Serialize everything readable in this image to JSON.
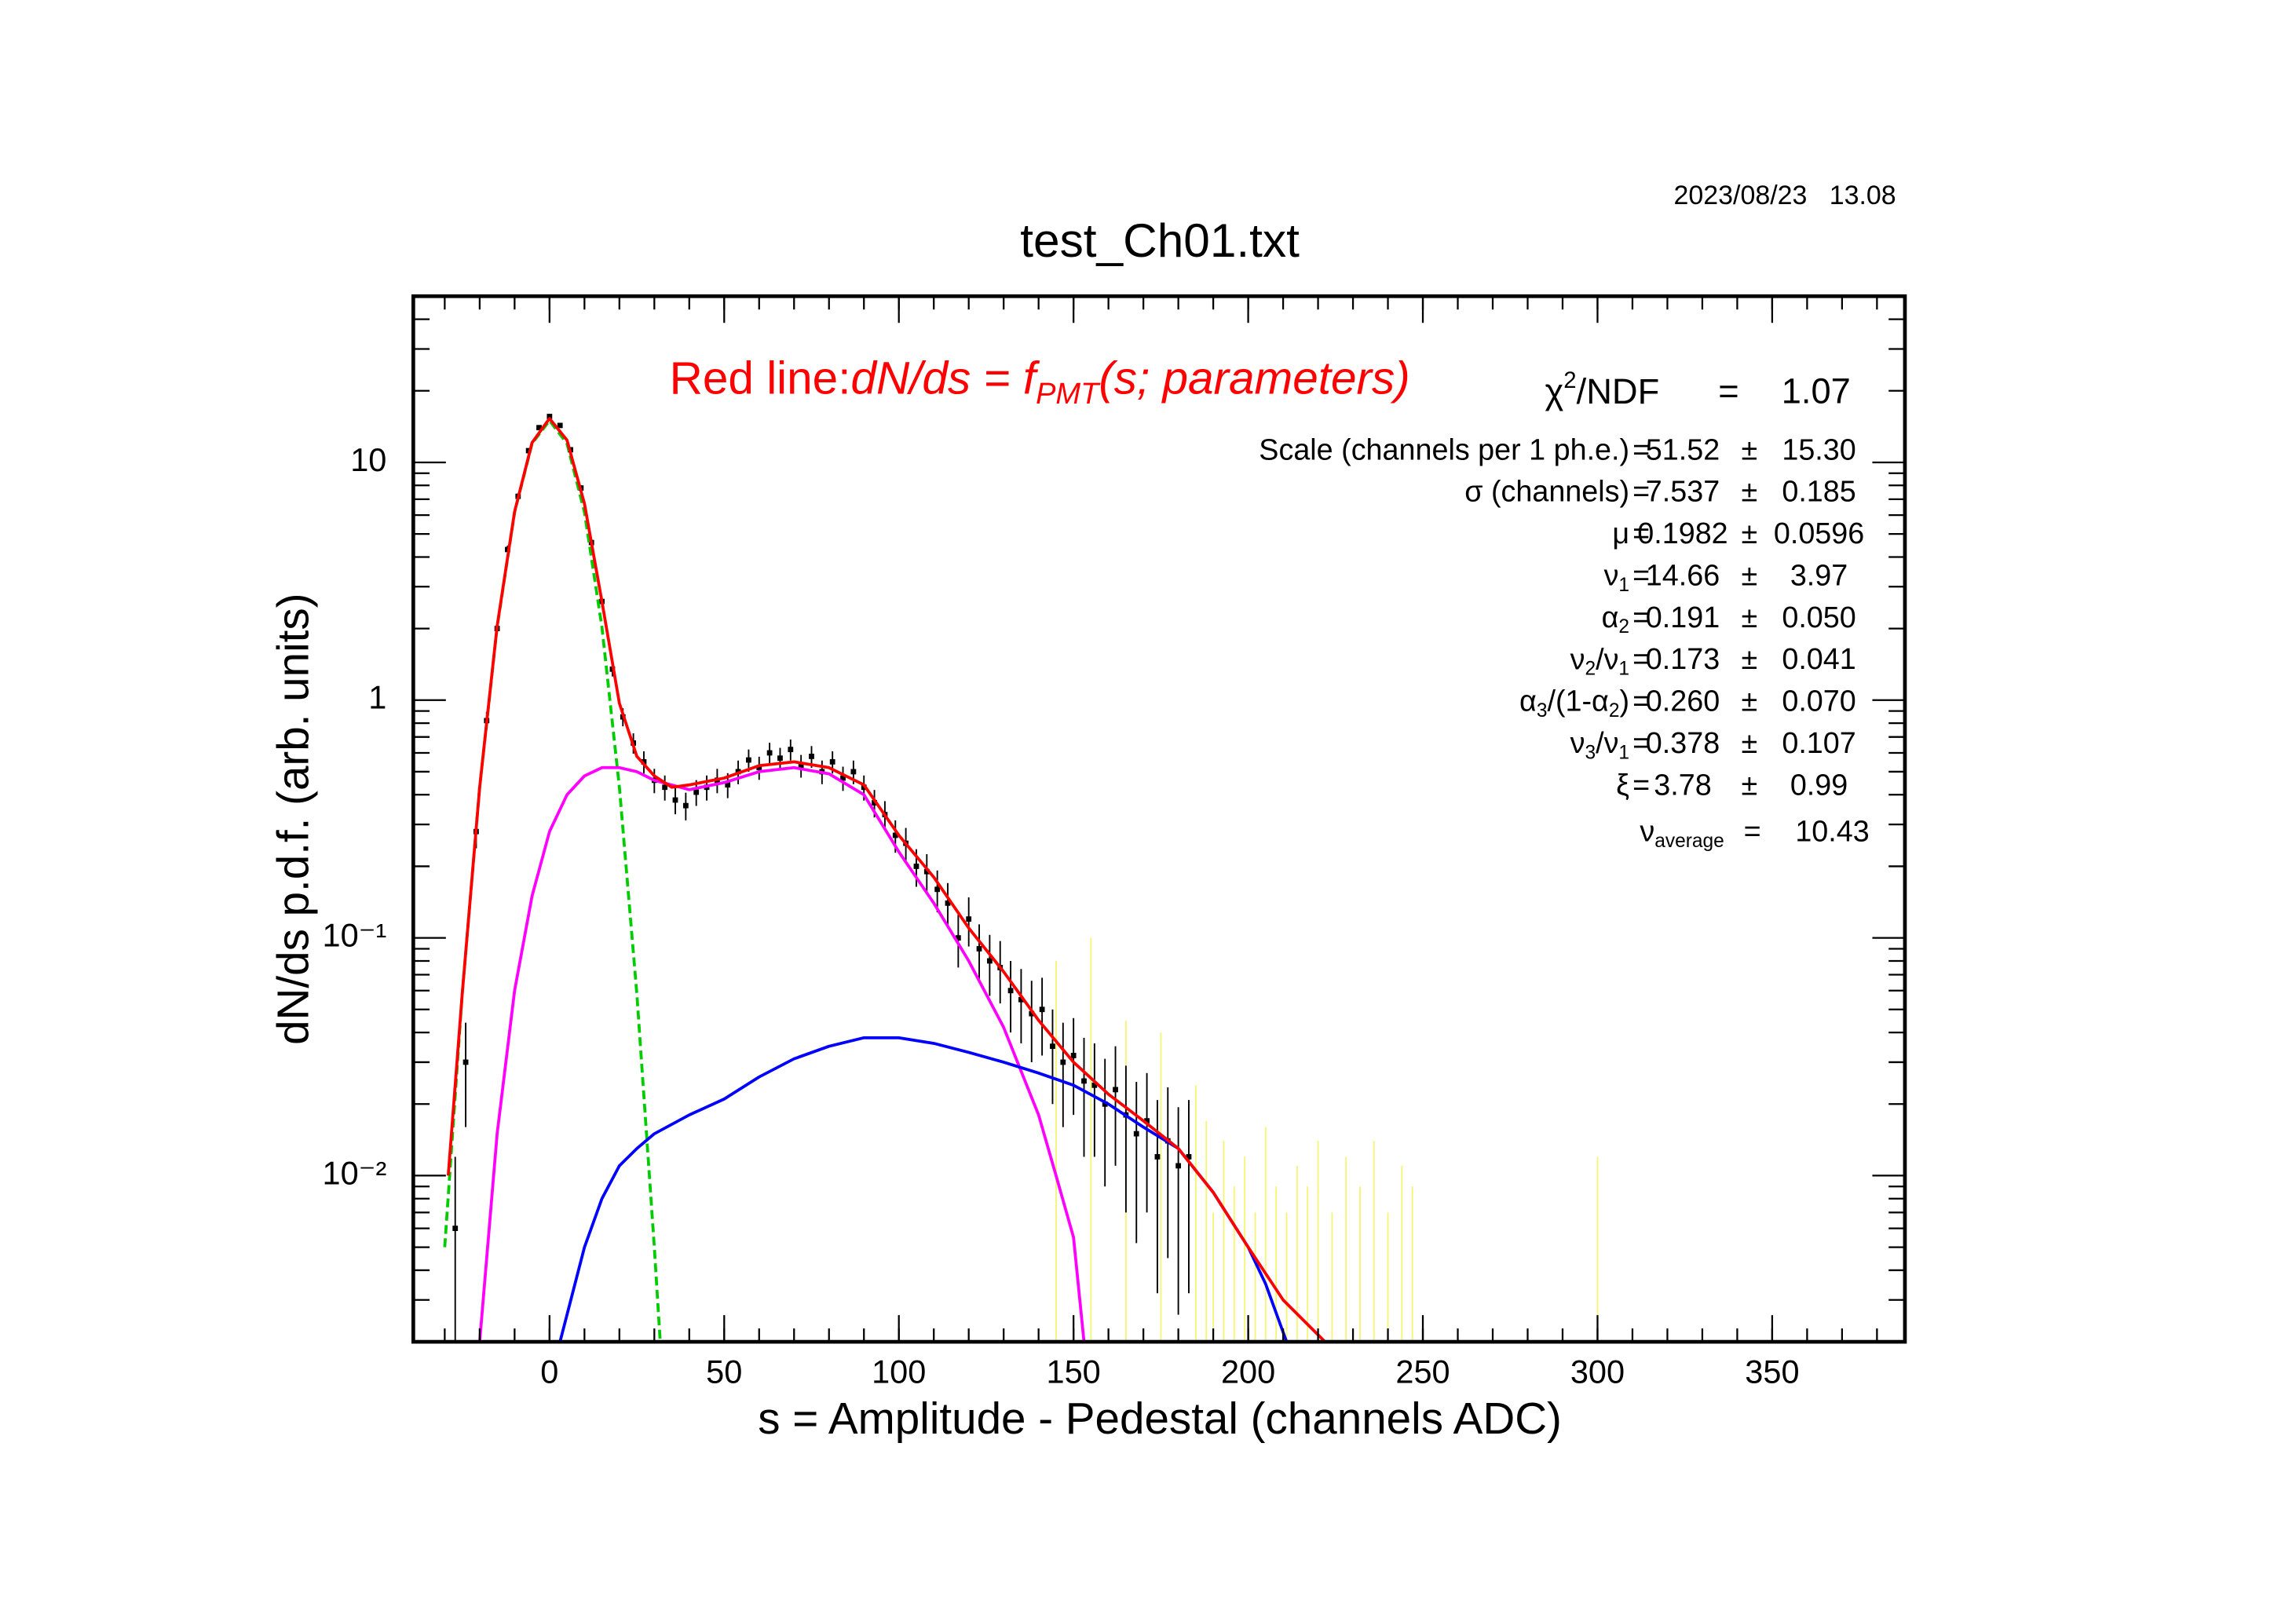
{
  "chart_data": {
    "type": "histogram-fit",
    "title": "test_Ch01.txt",
    "timestamp": "2023/08/23   13.08",
    "xlabel": "s = Amplitude - Pedestal (channels ADC)",
    "ylabel": "dN/ds p.d.f. (arb. units)",
    "xlim": [
      -39,
      388
    ],
    "ylim": [
      0.002,
      50
    ],
    "log_y": true,
    "xticks": [
      0,
      50,
      100,
      150,
      200,
      250,
      300,
      350
    ],
    "yticks": [
      {
        "value": 0.01,
        "label": "10⁻²"
      },
      {
        "value": 0.1,
        "label": "10⁻¹"
      },
      1,
      10
    ],
    "minor_ticks": 5,
    "annotation": {
      "prefix": "Red line:",
      "formula": [
        {
          "text": "dN/ds = f",
          "sub": "PMT"
        },
        {
          "text": "(s; parameters)"
        }
      ],
      "color": "#ff0000"
    },
    "chi2": {
      "label": [
        {
          "text": "χ"
        },
        {
          "text": "2",
          "sup": true
        },
        {
          "text": "/NDF"
        }
      ],
      "equals": "=",
      "value": "1.07"
    },
    "params": {
      "equals": "=",
      "pm": "±",
      "rows": [
        {
          "label": [
            {
              "text": "Scale (channels per 1 ph.e.)"
            }
          ],
          "value": "51.52",
          "error": "15.30"
        },
        {
          "label": [
            {
              "text": "σ (channels)"
            }
          ],
          "value": "7.537",
          "error": "0.185"
        },
        {
          "label": [
            {
              "text": "μ"
            }
          ],
          "value": "0.1982",
          "error": "0.0596"
        },
        {
          "label": [
            {
              "text": "ν",
              "sub": "1"
            }
          ],
          "value": "14.66",
          "error": "3.97"
        },
        {
          "label": [
            {
              "text": "α",
              "sub": "2"
            }
          ],
          "value": "0.191",
          "error": "0.050"
        },
        {
          "label": [
            {
              "text": "ν",
              "sub": "2"
            },
            {
              "text": "/ν",
              "sub": "1"
            }
          ],
          "value": "0.173",
          "error": "0.041"
        },
        {
          "label": [
            {
              "text": "α",
              "sub": "3"
            },
            {
              "text": "/(1-α",
              "sub": "2"
            },
            {
              "text": ")"
            }
          ],
          "value": "0.260",
          "error": "0.070"
        },
        {
          "label": [
            {
              "text": "ν",
              "sub": "3"
            },
            {
              "text": "/ν",
              "sub": "1"
            }
          ],
          "value": "0.378",
          "error": "0.107"
        },
        {
          "label": [
            {
              "text": "ξ"
            }
          ],
          "value": "3.78",
          "error": "0.99"
        },
        {
          "label": [
            {
              "text": "ν",
              "sub": "average"
            }
          ],
          "value": "10.43"
        }
      ]
    },
    "data": {
      "color": "#000000",
      "x": [
        -27,
        -24,
        -21,
        -18,
        -15,
        -12,
        -9,
        -6,
        -3,
        0,
        3,
        6,
        9,
        12,
        15,
        18,
        21,
        24,
        27,
        30,
        33,
        36,
        39,
        42,
        45,
        48,
        51,
        54,
        57,
        60,
        63,
        66,
        69,
        72,
        75,
        78,
        81,
        84,
        87,
        90,
        93,
        96,
        99,
        102,
        105,
        108,
        111,
        114,
        117,
        120,
        123,
        126,
        129,
        132,
        135,
        138,
        141,
        144,
        147,
        150,
        153,
        156,
        159,
        162,
        165,
        168,
        171,
        174,
        177,
        180,
        183
      ],
      "values": [
        0.006,
        0.03,
        0.28,
        0.82,
        2.0,
        4.3,
        7.2,
        11.2,
        14.0,
        15.6,
        14.3,
        11.3,
        7.8,
        4.6,
        2.6,
        1.35,
        0.85,
        0.66,
        0.55,
        0.46,
        0.43,
        0.38,
        0.36,
        0.41,
        0.43,
        0.46,
        0.44,
        0.5,
        0.56,
        0.52,
        0.6,
        0.57,
        0.62,
        0.53,
        0.58,
        0.5,
        0.55,
        0.47,
        0.5,
        0.43,
        0.37,
        0.33,
        0.27,
        0.25,
        0.2,
        0.19,
        0.16,
        0.14,
        0.1,
        0.12,
        0.09,
        0.08,
        0.075,
        0.06,
        0.055,
        0.048,
        0.05,
        0.035,
        0.03,
        0.032,
        0.025,
        0.024,
        0.02,
        0.023,
        0.018,
        0.015,
        0.017,
        0.012,
        0.014,
        0.011,
        0.012
      ],
      "errors": [
        0.006,
        0.014,
        0.042,
        0.072,
        0.11,
        0.17,
        0.21,
        0.27,
        0.3,
        0.32,
        0.3,
        0.27,
        0.22,
        0.17,
        0.13,
        0.093,
        0.074,
        0.065,
        0.059,
        0.054,
        0.052,
        0.049,
        0.048,
        0.051,
        0.052,
        0.054,
        0.053,
        0.057,
        0.06,
        0.058,
        0.062,
        0.06,
        0.063,
        0.058,
        0.061,
        0.057,
        0.059,
        0.055,
        0.057,
        0.052,
        0.049,
        0.046,
        0.042,
        0.04,
        0.036,
        0.035,
        0.032,
        0.03,
        0.025,
        0.028,
        0.024,
        0.023,
        0.022,
        0.02,
        0.019,
        0.018,
        0.018,
        0.015,
        0.014,
        0.014,
        0.013,
        0.012,
        0.011,
        0.012,
        0.011,
        0.0098,
        0.01,
        0.0088,
        0.0095,
        0.0084,
        0.0088
      ]
    },
    "yellow_data": {
      "color": "#f5f57a",
      "x": [
        145,
        155,
        165,
        175,
        185,
        188,
        190,
        193,
        196,
        199,
        202,
        205,
        208,
        211,
        214,
        217,
        220,
        224,
        228,
        232,
        236,
        240,
        244,
        247,
        300
      ],
      "values": [
        0.03,
        0.04,
        0.015,
        0.02,
        0.012,
        0.008,
        0.003,
        0.006,
        0.004,
        0.005,
        0.003,
        0.007,
        0.004,
        0.003,
        0.005,
        0.004,
        0.006,
        0.003,
        0.005,
        0.004,
        0.006,
        0.003,
        0.005,
        0.004,
        0.006
      ],
      "errors": [
        0.05,
        0.06,
        0.03,
        0.02,
        0.012,
        0.009,
        0.004,
        0.008,
        0.005,
        0.007,
        0.004,
        0.009,
        0.005,
        0.004,
        0.006,
        0.005,
        0.008,
        0.004,
        0.007,
        0.005,
        0.008,
        0.004,
        0.006,
        0.005,
        0.006
      ]
    },
    "curves": [
      {
        "color": "#00cc00",
        "dashed": true,
        "x": [
          -30,
          -25,
          -20,
          -15,
          -10,
          -5,
          0,
          5,
          10,
          15,
          20,
          25,
          30,
          31,
          32
        ],
        "values": [
          0.005,
          0.058,
          0.43,
          2.03,
          6.17,
          12.0,
          15.0,
          12.0,
          6.17,
          2.03,
          0.43,
          0.058,
          0.005,
          0.0029,
          0.0017
        ]
      },
      {
        "color": "#ff00ff",
        "x": [
          -20,
          -15,
          -10,
          -5,
          0,
          5,
          10,
          15,
          20,
          25,
          30,
          40,
          50,
          60,
          70,
          80,
          90,
          100,
          110,
          120,
          130,
          140,
          145,
          150,
          153
        ],
        "values": [
          0.002,
          0.015,
          0.06,
          0.15,
          0.28,
          0.4,
          0.48,
          0.52,
          0.52,
          0.5,
          0.46,
          0.42,
          0.45,
          0.5,
          0.52,
          0.49,
          0.4,
          0.23,
          0.14,
          0.08,
          0.042,
          0.018,
          0.01,
          0.0055,
          0.002
        ]
      },
      {
        "color": "#0000ff",
        "x": [
          3,
          10,
          15,
          20,
          25,
          30,
          40,
          50,
          60,
          70,
          80,
          90,
          100,
          110,
          120,
          130,
          140,
          150,
          160,
          170,
          180,
          190,
          200,
          205,
          211
        ],
        "values": [
          0.002,
          0.005,
          0.008,
          0.011,
          0.013,
          0.015,
          0.018,
          0.021,
          0.026,
          0.031,
          0.035,
          0.038,
          0.038,
          0.036,
          0.033,
          0.03,
          0.027,
          0.024,
          0.02,
          0.016,
          0.013,
          0.0085,
          0.005,
          0.0035,
          0.002
        ]
      },
      {
        "color": "#ff0000",
        "x": [
          -29,
          -25,
          -20,
          -15,
          -10,
          -5,
          0,
          5,
          10,
          15,
          20,
          25,
          30,
          35,
          40,
          50,
          60,
          70,
          80,
          90,
          100,
          110,
          120,
          130,
          140,
          150,
          160,
          170,
          180,
          190,
          200,
          210,
          222
        ],
        "values": [
          0.01,
          0.058,
          0.43,
          2.05,
          6.2,
          12.1,
          15.3,
          12.4,
          6.7,
          2.6,
          0.97,
          0.58,
          0.48,
          0.43,
          0.44,
          0.47,
          0.53,
          0.55,
          0.52,
          0.44,
          0.27,
          0.18,
          0.11,
          0.072,
          0.045,
          0.03,
          0.022,
          0.017,
          0.013,
          0.0085,
          0.005,
          0.003,
          0.002
        ]
      }
    ]
  }
}
